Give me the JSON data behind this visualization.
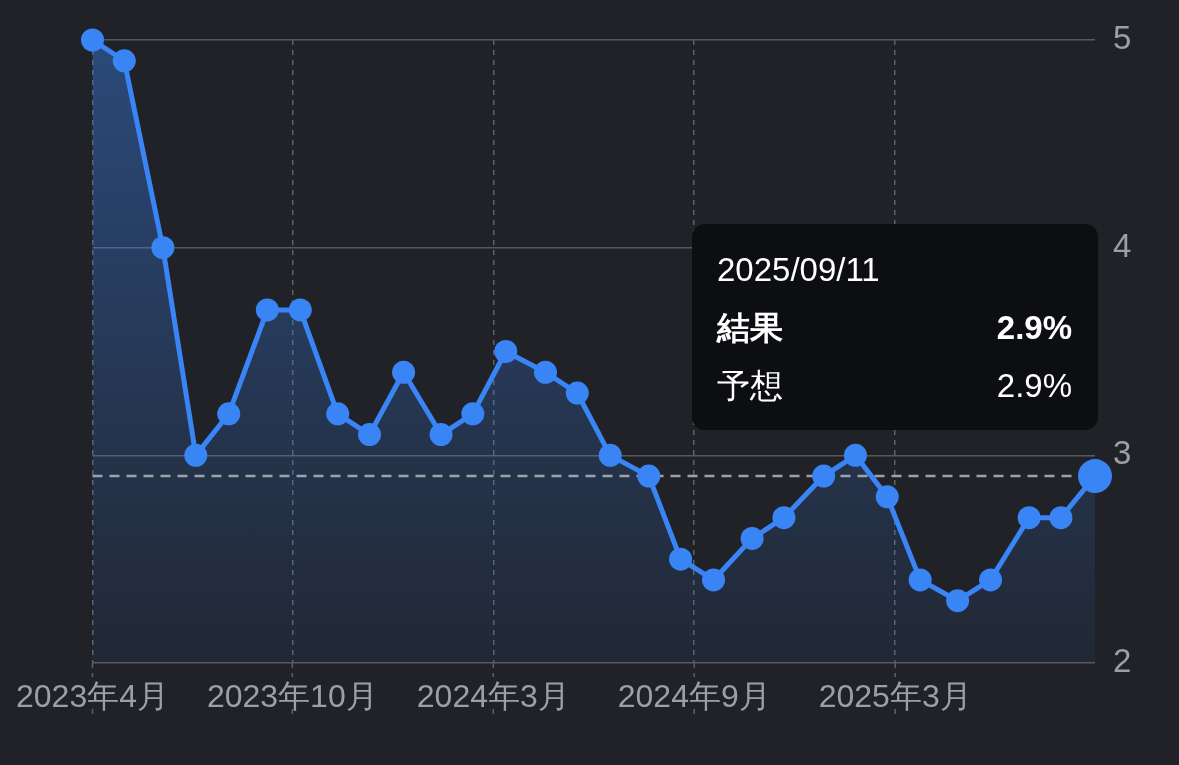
{
  "chart_data": {
    "type": "area",
    "x": [
      "2023-04-12",
      "2023-05-10",
      "2023-06-13",
      "2023-07-12",
      "2023-08-10",
      "2023-09-13",
      "2023-10-12",
      "2023-11-14",
      "2023-12-12",
      "2024-01-11",
      "2024-02-13",
      "2024-03-12",
      "2024-04-10",
      "2024-05-15",
      "2024-06-12",
      "2024-07-11",
      "2024-08-14",
      "2024-09-11",
      "2024-10-10",
      "2024-11-13",
      "2024-12-11",
      "2025-01-15",
      "2025-02-12",
      "2025-03-12",
      "2025-04-10",
      "2025-05-13",
      "2025-06-11",
      "2025-07-15",
      "2025-08-12",
      "2025-09-11"
    ],
    "series": [
      {
        "color": "#3a85f5",
        "values": [
          5,
          4.9,
          4,
          3,
          3.2,
          3.7,
          3.7,
          3.2,
          3.1,
          3.4,
          3.1,
          3.2,
          3.5,
          3.4,
          3.3,
          3,
          2.9,
          2.5,
          2.4,
          2.6,
          2.7,
          2.9,
          3,
          2.8,
          2.4,
          2.3,
          2.4,
          2.7,
          2.7,
          2.9
        ]
      },
      {
        "type": "scatter",
        "x": [
          "2025-09-11"
        ],
        "color": "#3a85f5",
        "values": [
          2.9
        ]
      }
    ],
    "xlim": [
      "2023-04-12",
      "2025-09-11"
    ],
    "xticks": [
      {
        "value": "2023-04-12",
        "label": "2023年4月"
      },
      {
        "value": "2023-10-05",
        "label": "2023年10月"
      },
      {
        "value": "2024-03-30",
        "label": "2024年3月"
      },
      {
        "value": "2024-09-23",
        "label": "2024年9月"
      },
      {
        "value": "2025-03-19",
        "label": "2025年3月"
      }
    ],
    "ylim": [
      2,
      5
    ],
    "yticks": [
      2,
      3,
      4,
      5
    ],
    "grid": true,
    "marker": "circle",
    "ref_lines": [
      {
        "axis": "y",
        "value": 2.9,
        "color": "#9ea1a8",
        "line_style": "dashed"
      }
    ],
    "annotations": [
      "2025/09/11",
      "結果",
      "2.9%",
      "予想",
      "2.9%"
    ]
  }
}
